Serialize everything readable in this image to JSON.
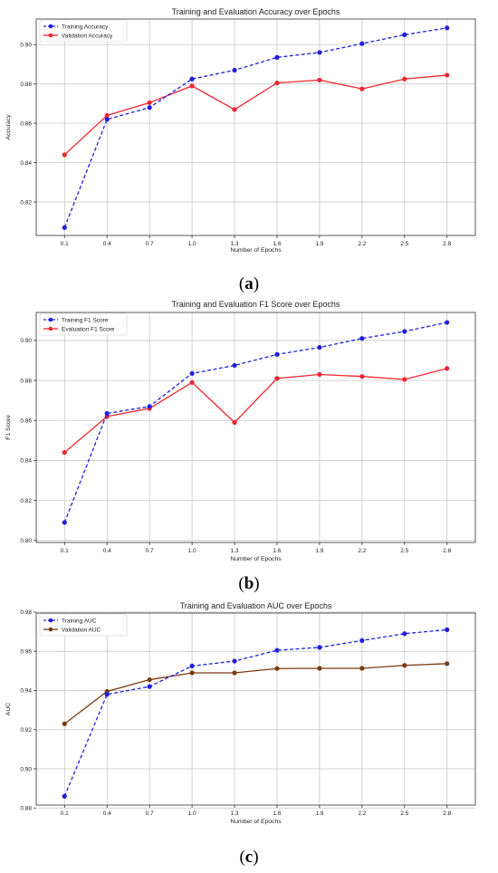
{
  "colors": {
    "train": "#1f1fe0",
    "val_red": "#f0262f",
    "val_brown": "#7a3b12",
    "grid": "#c8c8c8",
    "bg": "#ffffff"
  },
  "chart_data": [
    {
      "type": "line",
      "title": "Training and Evaluation Accuracy over Epochs",
      "xlabel": "Number of Epochs",
      "ylabel": "Accuracy",
      "x": [
        0.1,
        0.4,
        0.7,
        1.0,
        1.3,
        1.6,
        1.9,
        2.2,
        2.5,
        2.8
      ],
      "x_ticks": [
        "0.1",
        "0.4",
        "0.7",
        "1.0",
        "1.3",
        "1.6",
        "1.9",
        "2.2",
        "2.5",
        "2.8"
      ],
      "y_ticks": [
        "0.82",
        "0.84",
        "0.86",
        "0.88",
        "0.90"
      ],
      "ylim": [
        0.803,
        0.913
      ],
      "grid": true,
      "legend": "top-left",
      "series": [
        {
          "name": "Training Accuracy",
          "color": "#1f1fe0",
          "style": "dashed",
          "values": [
            0.807,
            0.862,
            0.868,
            0.8825,
            0.887,
            0.8935,
            0.896,
            0.9005,
            0.905,
            0.9085
          ]
        },
        {
          "name": "Validation Accuracy",
          "color": "#f0262f",
          "style": "solid",
          "values": [
            0.844,
            0.864,
            0.8705,
            0.879,
            0.867,
            0.8805,
            0.882,
            0.8775,
            0.8825,
            0.8845
          ]
        }
      ]
    },
    {
      "type": "line",
      "title": "Training and Evaluation F1 Score over Epochs",
      "xlabel": "Number of Epochs",
      "ylabel": "F1 Score",
      "x": [
        0.1,
        0.4,
        0.7,
        1.0,
        1.3,
        1.6,
        1.9,
        2.2,
        2.5,
        2.8
      ],
      "x_ticks": [
        "0.1",
        "0.4",
        "0.7",
        "1.0",
        "1.3",
        "1.6",
        "1.9",
        "2.2",
        "2.5",
        "2.8"
      ],
      "y_ticks": [
        "0.80",
        "0.82",
        "0.84",
        "0.86",
        "0.88",
        "0.90"
      ],
      "ylim": [
        0.799,
        0.914
      ],
      "grid": true,
      "legend": "top-left",
      "series": [
        {
          "name": "Training F1 Score",
          "color": "#1f1fe0",
          "style": "dashed",
          "values": [
            0.809,
            0.8635,
            0.867,
            0.8835,
            0.8875,
            0.893,
            0.8965,
            0.901,
            0.9045,
            0.909
          ]
        },
        {
          "name": "Evaluation F1 Score",
          "color": "#f0262f",
          "style": "solid",
          "values": [
            0.844,
            0.862,
            0.866,
            0.879,
            0.859,
            0.881,
            0.883,
            0.882,
            0.8805,
            0.886
          ]
        }
      ]
    },
    {
      "type": "line",
      "title": "Training and Evaluation AUC over Epochs",
      "xlabel": "Number of Epochs",
      "ylabel": "AUC",
      "x": [
        0.1,
        0.4,
        0.7,
        1.0,
        1.3,
        1.6,
        1.9,
        2.2,
        2.5,
        2.8
      ],
      "x_ticks": [
        "0.1",
        "0.4",
        "0.7",
        "1.0",
        "1.3",
        "1.6",
        "1.9",
        "2.2",
        "2.5",
        "2.8"
      ],
      "y_ticks": [
        "0.88",
        "0.90",
        "0.92",
        "0.94",
        "0.96",
        "0.98"
      ],
      "ylim": [
        0.8815,
        0.9795
      ],
      "grid": true,
      "legend": "top-left",
      "series": [
        {
          "name": "Training AUC",
          "color": "#1f1fe0",
          "style": "dashed",
          "values": [
            0.886,
            0.938,
            0.942,
            0.9525,
            0.955,
            0.9605,
            0.962,
            0.9655,
            0.969,
            0.971
          ]
        },
        {
          "name": "Validation AUC",
          "color": "#7a3b12",
          "style": "solid",
          "values": [
            0.923,
            0.9395,
            0.9455,
            0.949,
            0.949,
            0.9512,
            0.9513,
            0.9513,
            0.9528,
            0.9537
          ]
        }
      ]
    }
  ],
  "captions": [
    "(a)",
    "(b)",
    "(c)"
  ]
}
